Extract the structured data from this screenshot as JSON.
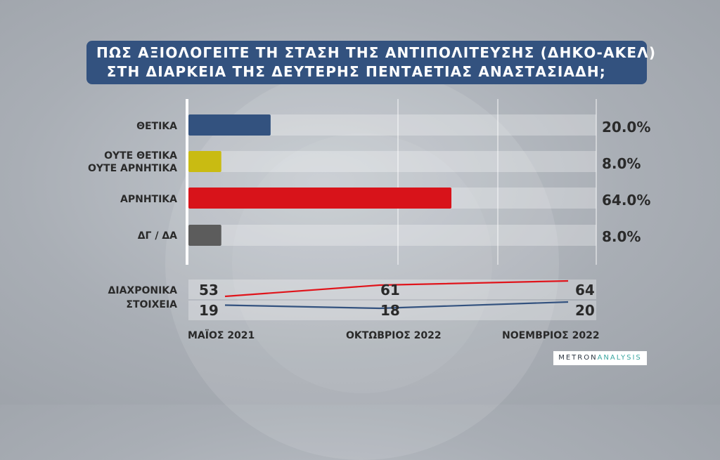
{
  "chart_data": {
    "type": "bar",
    "title_line1": "ΠΩΣ ΑΞΙΟΛΟΓΕΙΤΕ ΤΗ ΣΤΑΣΗ ΤΗΣ ΑΝΤΙΠΟΛΙΤΕΥΣΗΣ (ΔΗΚΟ-ΑΚΕΛ)",
    "title_line2": "ΣΤΗ ΔΙΑΡΚΕΙΑ ΤΗΣ ΔΕΥΤΕΡΗΣ ΠΕΝΤΑΕΤΙΑΣ ΑΝΑΣΤΑΣΙΑΔΗ;",
    "categories": [
      {
        "line1": "ΘΕΤΙΚΑ",
        "line2": "",
        "value": 20.0,
        "label": "20.0%",
        "color": "#33527f"
      },
      {
        "line1": "ΟΥΤΕ ΘΕΤΙΚΑ",
        "line2": "ΟΥΤΕ ΑΡΝΗΤΙΚΑ",
        "value": 8.0,
        "label": "8.0%",
        "color": "#c9bb12"
      },
      {
        "line1": "ΑΡΝΗΤΙΚΑ",
        "line2": "",
        "value": 64.0,
        "label": "64.0%",
        "color": "#d8131a"
      },
      {
        "line1": "ΔΓ / ΔΑ",
        "line2": "",
        "value": 8.0,
        "label": "8.0%",
        "color": "#5c5c5c"
      }
    ],
    "xlim": [
      0,
      100
    ],
    "history": {
      "label_line1": "ΔΙΑΧΡΟΝΙΚΑ",
      "label_line2": "ΣΤΟΙΧΕΙΑ",
      "x": [
        "ΜΑΪΟΣ 2021",
        "ΟΚΤΩΒΡΙΟΣ 2022",
        "ΝΟΕΜΒΡΙΟΣ 2022"
      ],
      "series": [
        {
          "color": "#e0141b",
          "values": [
            53,
            61,
            64
          ]
        },
        {
          "color": "#33527f",
          "values": [
            19,
            18,
            20
          ]
        }
      ]
    }
  },
  "logo": {
    "part1": "METRON",
    "part2": "ANALYSIS"
  }
}
